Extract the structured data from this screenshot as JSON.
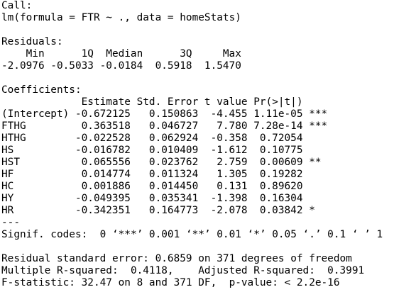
{
  "call": {
    "label": "Call:",
    "formula": "lm(formula = FTR ~ ., data = homeStats)"
  },
  "residuals": {
    "label": "Residuals:",
    "headers": [
      "Min",
      "1Q",
      "Median",
      "3Q",
      "Max"
    ],
    "values": [
      "-2.0976",
      "-0.5033",
      "-0.0184",
      "0.5918",
      "1.5470"
    ]
  },
  "coefficients": {
    "label": "Coefficients:",
    "headers": [
      "Estimate",
      "Std. Error",
      "t value",
      "Pr(>|t|)"
    ],
    "rows": [
      [
        "(Intercept)",
        "-0.672125",
        "0.150863",
        "-4.455",
        "1.11e-05",
        "***"
      ],
      [
        "FTHG",
        "0.363518",
        "0.046727",
        "7.780",
        "7.28e-14",
        "***"
      ],
      [
        "HTHG",
        "-0.022528",
        "0.062924",
        "-0.358",
        "0.72054"
      ],
      [
        "HS",
        "-0.016782",
        "0.010409",
        "-1.612",
        "0.10775"
      ],
      [
        "HST",
        "0.065556",
        "0.023762",
        "2.759",
        "0.00609",
        "**"
      ],
      [
        "HF",
        "0.014774",
        "0.011324",
        "1.305",
        "0.19282"
      ],
      [
        "HC",
        "0.001886",
        "0.014450",
        "0.131",
        "0.89620"
      ],
      [
        "HY",
        "-0.049395",
        "0.035341",
        "-1.398",
        "0.16304"
      ],
      [
        "HR",
        "-0.342351",
        "0.164773",
        "-2.078",
        "0.03842",
        "*"
      ]
    ],
    "separator": "---",
    "signif_codes": "Signif. codes:  0 ‘***’ 0.001 ‘**’ 0.01 ‘*’ 0.05 ‘.’ 0.1 ‘ ’ 1"
  },
  "footer": [
    "Residual standard error: 0.6859 on 371 degrees of freedom",
    "Multiple R-squared:  0.4118,    Adjusted R-squared:  0.3991",
    "F-statistic: 32.47 on 8 and 371 DF,  p-value: < 2.2e-16"
  ]
}
